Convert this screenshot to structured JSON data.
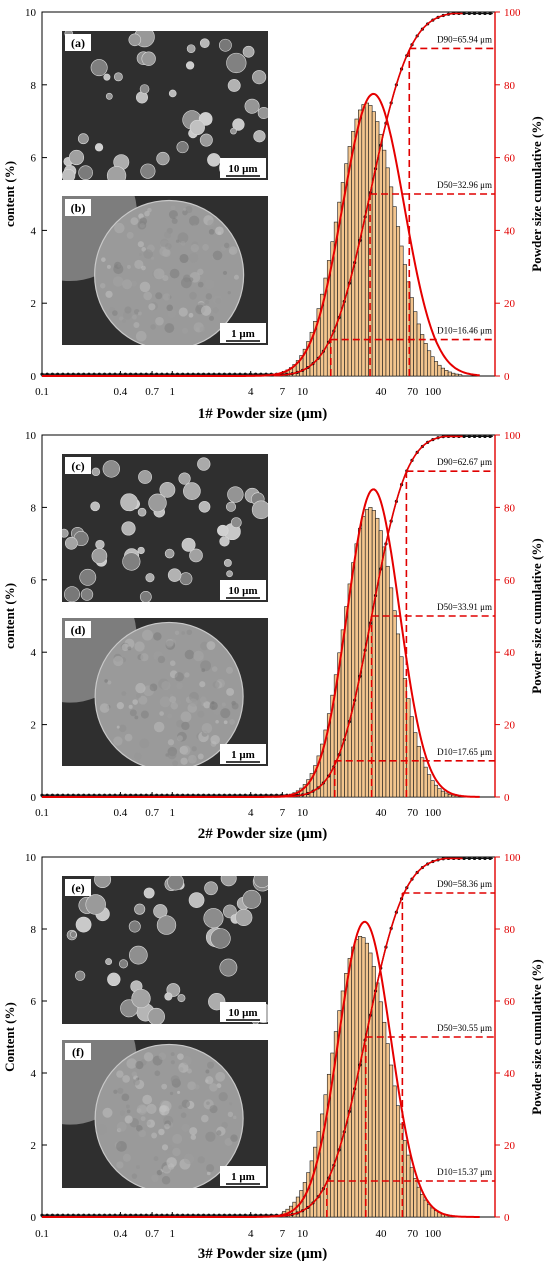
{
  "colors": {
    "bar_fill": "#f3c58e",
    "bar_stroke": "#1a1a1a",
    "fit_curve": "#e50000",
    "cumulative_line": "#111111",
    "cumulative_marker": "#111111",
    "right_axis": "#e00000",
    "guide_line": "#e00000",
    "sem_background": "#2f2f2f",
    "sem_particle": "#9a9a9a"
  },
  "chart_data": [
    {
      "type": "bar",
      "xscale": "log",
      "xlabel": "1# Powder size (μm)",
      "ylabel": "content (%)",
      "ylabel_right": "Powder size cumulative (%)",
      "xlim": [
        0.1,
        300
      ],
      "ylim": [
        0,
        10
      ],
      "ylim_right": [
        0,
        100
      ],
      "xticks": [
        "0.1",
        "0.4",
        "0.7",
        "1",
        "4",
        "7",
        "10",
        "40",
        "70",
        "100"
      ],
      "yticks": [
        "0",
        "2",
        "4",
        "6",
        "8",
        "10"
      ],
      "yticks_right": [
        "0",
        "20",
        "40",
        "60",
        "80",
        "100"
      ],
      "distribution": {
        "mode_um": 31,
        "peak_percent": 7.5,
        "log_sigma": 0.22
      },
      "fit_curve": {
        "mean_um": 35,
        "peak_percent": 7.75,
        "log_sigma": 0.235
      },
      "cumulative_fit": {
        "D50": 32.96,
        "log_sigma": 0.24
      },
      "percentiles": [
        {
          "name": "D10",
          "value": 16.46,
          "cumulative": 10,
          "label": "D10=16.46 μm"
        },
        {
          "name": "D50",
          "value": 32.96,
          "cumulative": 50,
          "label": "D50=32.96 μm"
        },
        {
          "name": "D90",
          "value": 65.94,
          "cumulative": 90,
          "label": "D90=65.94 μm"
        }
      ],
      "insets": [
        {
          "label": "(a)",
          "scale_bar": "10 μm",
          "kind": "field"
        },
        {
          "label": "(b)",
          "scale_bar": "1 μm",
          "kind": "single"
        }
      ]
    },
    {
      "type": "bar",
      "xscale": "log",
      "xlabel": "2# Powder size (μm)",
      "ylabel": "content (%)",
      "ylabel_right": "Powder size cumulative (%)",
      "xlim": [
        0.1,
        300
      ],
      "ylim": [
        0,
        10
      ],
      "ylim_right": [
        0,
        100
      ],
      "xticks": [
        "0.1",
        "0.4",
        "0.7",
        "1",
        "4",
        "7",
        "10",
        "40",
        "70",
        "100"
      ],
      "yticks": [
        "0",
        "2",
        "4",
        "6",
        "8",
        "10"
      ],
      "yticks_right": [
        "0",
        "20",
        "40",
        "60",
        "80",
        "100"
      ],
      "distribution": {
        "mode_um": 33,
        "peak_percent": 8.0,
        "log_sigma": 0.2
      },
      "fit_curve": {
        "mean_um": 35,
        "peak_percent": 8.5,
        "log_sigma": 0.2
      },
      "cumulative_fit": {
        "D50": 33.91,
        "log_sigma": 0.21
      },
      "percentiles": [
        {
          "name": "D10",
          "value": 17.65,
          "cumulative": 10,
          "label": "D10=17.65 μm"
        },
        {
          "name": "D50",
          "value": 33.91,
          "cumulative": 50,
          "label": "D50=33.91 μm"
        },
        {
          "name": "D90",
          "value": 62.67,
          "cumulative": 90,
          "label": "D90=62.67 μm"
        }
      ],
      "insets": [
        {
          "label": "(c)",
          "scale_bar": "10 μm",
          "kind": "field"
        },
        {
          "label": "(d)",
          "scale_bar": "1 μm",
          "kind": "single"
        }
      ]
    },
    {
      "type": "bar",
      "xscale": "log",
      "xlabel": "3# Powder size (μm)",
      "ylabel": "Content (%)",
      "ylabel_right": "Powder size cumulative (%)",
      "xlim": [
        0.1,
        300
      ],
      "ylim": [
        0,
        10
      ],
      "ylim_right": [
        0,
        100
      ],
      "xticks": [
        "0.1",
        "0.4",
        "0.7",
        "1",
        "4",
        "7",
        "10",
        "40",
        "70",
        "100"
      ],
      "yticks": [
        "0",
        "2",
        "4",
        "6",
        "8",
        "10"
      ],
      "yticks_right": [
        "0",
        "20",
        "40",
        "60",
        "80",
        "100"
      ],
      "distribution": {
        "mode_um": 28,
        "peak_percent": 7.8,
        "log_sigma": 0.21
      },
      "fit_curve": {
        "mean_um": 30,
        "peak_percent": 8.2,
        "log_sigma": 0.2
      },
      "cumulative_fit": {
        "D50": 30.55,
        "log_sigma": 0.23
      },
      "percentiles": [
        {
          "name": "D10",
          "value": 15.37,
          "cumulative": 10,
          "label": "D10=15.37 μm"
        },
        {
          "name": "D50",
          "value": 30.55,
          "cumulative": 50,
          "label": "D50=30.55 μm"
        },
        {
          "name": "D90",
          "value": 58.36,
          "cumulative": 90,
          "label": "D90=58.36 μm"
        }
      ],
      "insets": [
        {
          "label": "(e)",
          "scale_bar": "10 μm",
          "kind": "field"
        },
        {
          "label": "(f)",
          "scale_bar": "1 μm",
          "kind": "single"
        }
      ]
    }
  ]
}
